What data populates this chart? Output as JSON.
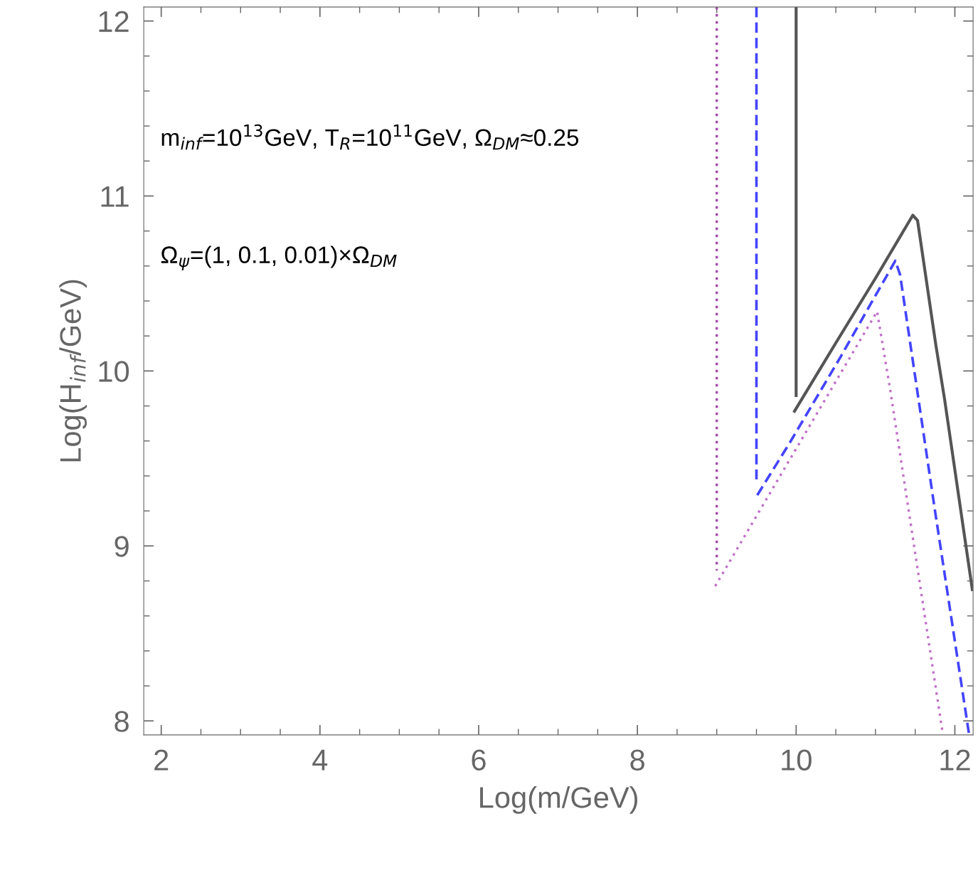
{
  "chart_data": {
    "type": "line",
    "xlabel": "Log(m/GeV)",
    "ylabel": "Log(H$_{inf}$/GeV)",
    "xlim": [
      1.78,
      12.23
    ],
    "ylim": [
      7.92,
      12.08
    ],
    "xticks": [
      2,
      4,
      6,
      8,
      10,
      12
    ],
    "yticks": [
      8,
      9,
      10,
      11,
      12
    ],
    "grid": false,
    "legend": false,
    "marker": "none",
    "annotations": [
      "m$_{inf}$=10$^{13}$GeV, T$_{R}$=10$^{11}$GeV, Ω$_{DM}$≈0.25",
      "Ω$_{ψ}$=(1, 0.1, 0.01)×Ω$_{DM}$"
    ],
    "series": [
      {
        "color": "#555555",
        "line_style": "solid",
        "x": [
          10.0,
          10.0
        ],
        "values": [
          12.08,
          9.86
        ]
      },
      {
        "color": "#555555",
        "line_style": "solid",
        "x": [
          9.98,
          10.5,
          11.0,
          11.47,
          11.53,
          11.76,
          11.87,
          12.22
        ],
        "values": [
          9.77,
          10.16,
          10.53,
          10.89,
          10.86,
          10.15,
          9.84,
          8.75
        ]
      },
      {
        "color": "#4444ff",
        "line_style": "dashed",
        "x": [
          9.5,
          9.5
        ],
        "values": [
          12.08,
          9.38
        ]
      },
      {
        "color": "#4444ff",
        "line_style": "dashed",
        "x": [
          9.51,
          9.92,
          10.56,
          10.76,
          11.25,
          11.31,
          11.74,
          12.18
        ],
        "values": [
          9.29,
          9.59,
          10.08,
          10.24,
          10.63,
          10.55,
          9.23,
          7.92
        ]
      },
      {
        "color": "#a04aa8",
        "line_style": "dotted",
        "x": [
          9.0,
          9.0
        ],
        "values": [
          12.08,
          8.86
        ]
      },
      {
        "color": "#c070c8",
        "line_style": "dotted",
        "x": [
          8.98,
          9.98,
          11.02,
          11.19,
          11.85
        ],
        "values": [
          8.77,
          9.54,
          10.34,
          9.88,
          7.92
        ]
      }
    ]
  }
}
